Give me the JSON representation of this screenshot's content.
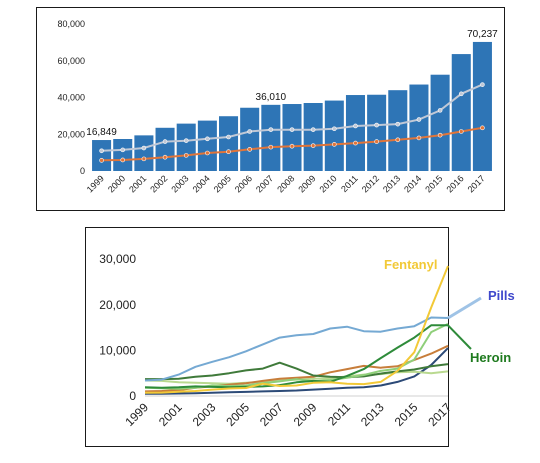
{
  "chart_data": [
    {
      "type": "bar",
      "title": "",
      "xlabel": "",
      "ylabel": "",
      "ylim": [
        0,
        80000
      ],
      "yticks": [
        "0",
        "20,000",
        "40,000",
        "60,000",
        "80,000"
      ],
      "categories": [
        "1999",
        "2000",
        "2001",
        "2002",
        "2003",
        "2004",
        "2005",
        "2006",
        "2007",
        "2008",
        "2009",
        "2010",
        "2011",
        "2012",
        "2013",
        "2014",
        "2015",
        "2016",
        "2017"
      ],
      "grid": false,
      "legend": "none",
      "bar_color": "#2E75B6",
      "series": [
        {
          "kind": "bar",
          "color": "#2E75B6",
          "values": [
            16849,
            17415,
            19394,
            23518,
            25785,
            27424,
            29813,
            34425,
            36010,
            36450,
            37004,
            38329,
            41340,
            41502,
            43982,
            47055,
            52404,
            63632,
            70237
          ]
        },
        {
          "kind": "line",
          "color": "#C0C8D6",
          "values": [
            11000,
            11500,
            12500,
            16000,
            16500,
            17500,
            18500,
            21500,
            22500,
            22500,
            22500,
            23000,
            24500,
            25000,
            25500,
            28000,
            33000,
            42000,
            47000
          ]
        },
        {
          "kind": "line",
          "color": "#E0753A",
          "values": [
            5800,
            6000,
            6600,
            7500,
            8500,
            9800,
            10500,
            11800,
            13000,
            13500,
            13800,
            14500,
            15200,
            16000,
            17000,
            18000,
            19500,
            21500,
            23500
          ]
        }
      ],
      "data_labels": [
        {
          "category": "1999",
          "text": "16,849"
        },
        {
          "category": "2007",
          "text": "36,010"
        },
        {
          "category": "2017",
          "text": "70,237"
        }
      ]
    },
    {
      "type": "line",
      "title": "",
      "xlabel": "",
      "ylabel": "",
      "ylim": [
        0,
        32000
      ],
      "yticks": [
        "0",
        "10,000",
        "20,000",
        "30,000"
      ],
      "x": [
        1999,
        2000,
        2001,
        2002,
        2003,
        2004,
        2005,
        2006,
        2007,
        2008,
        2009,
        2010,
        2011,
        2012,
        2013,
        2014,
        2015,
        2016,
        2017
      ],
      "xticks": [
        "1999",
        "2001",
        "2003",
        "2005",
        "2007",
        "2009",
        "2011",
        "2013",
        "2015",
        "2017"
      ],
      "grid": false,
      "series": [
        {
          "name": "Fentanyl",
          "color": "#F2C937",
          "label_color": "#F2C937",
          "values": [
            700,
            750,
            950,
            1100,
            1400,
            1650,
            1750,
            2700,
            2200,
            2300,
            2900,
            3000,
            2700,
            2600,
            3100,
            5500,
            9600,
            19400,
            28500
          ]
        },
        {
          "name": "Pills",
          "color": "#75A9D3",
          "label_color": "#3F48CC",
          "values": [
            3400,
            3600,
            4700,
            6400,
            7500,
            8500,
            9800,
            11300,
            12800,
            13300,
            13600,
            14800,
            15200,
            14200,
            14100,
            14800,
            15300,
            17200,
            17100
          ]
        },
        {
          "name": "Heroin",
          "color": "#2E8B3A",
          "label_color": "#1E7A1E",
          "values": [
            1900,
            1800,
            1900,
            2100,
            2000,
            1900,
            2000,
            2100,
            2400,
            3000,
            3300,
            3100,
            4400,
            5900,
            8300,
            10600,
            12800,
            15500,
            15500
          ]
        },
        {
          "name": "",
          "color": "#8FCF7A",
          "values": [
            1800,
            1700,
            1600,
            1800,
            2300,
            2200,
            2300,
            2800,
            3200,
            3700,
            3200,
            3500,
            4000,
            4600,
            5500,
            6000,
            8000,
            14000,
            15800
          ]
        },
        {
          "name": "",
          "color": "#3F7A3A",
          "values": [
            3700,
            3700,
            3800,
            4200,
            4500,
            5000,
            5600,
            6000,
            7300,
            6000,
            4500,
            4200,
            4100,
            4300,
            4900,
            5400,
            5800,
            6500,
            7000
          ]
        },
        {
          "name": "",
          "color": "#C77D3A",
          "values": [
            1000,
            1100,
            1300,
            1800,
            2100,
            2500,
            2800,
            3300,
            3800,
            4000,
            4200,
            5200,
            5900,
            6600,
            6200,
            6500,
            7900,
            9300,
            11000
          ]
        },
        {
          "name": "",
          "color": "#B9D98F",
          "values": [
            3400,
            3300,
            3000,
            2900,
            2800,
            2700,
            2900,
            3100,
            3400,
            3600,
            3800,
            3900,
            4300,
            4700,
            4800,
            5200,
            5300,
            5000,
            5400
          ]
        },
        {
          "name": "",
          "color": "#2C4A77",
          "values": [
            500,
            500,
            550,
            600,
            700,
            800,
            900,
            1000,
            1100,
            1200,
            1400,
            1600,
            1800,
            1900,
            2300,
            3100,
            4300,
            6800,
            10500
          ]
        }
      ]
    }
  ]
}
